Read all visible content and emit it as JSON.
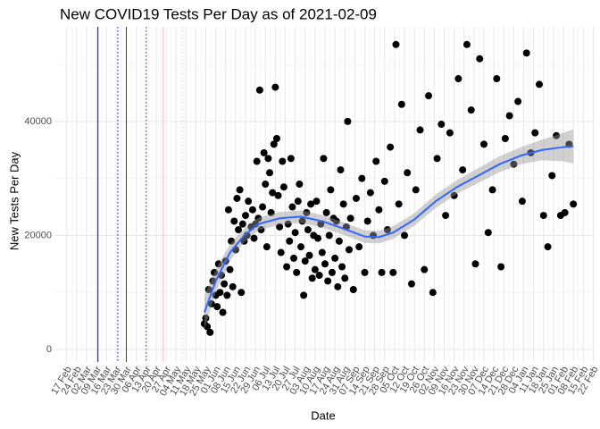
{
  "chart_data": {
    "type": "scatter",
    "title": "New COVID19 Tests Per Day as of 2021-02-09",
    "x_label": "Date",
    "y_label": "New Tests Per Day",
    "xlim": [
      -8,
      372
    ],
    "ylim": [
      -2200,
      56600
    ],
    "yticks": [
      0,
      20000,
      40000
    ],
    "xticks": [
      {
        "value": 0,
        "label": "17 Feb"
      },
      {
        "value": 7,
        "label": "24 Feb"
      },
      {
        "value": 14,
        "label": "02 Mar"
      },
      {
        "value": 21,
        "label": "09 Mar"
      },
      {
        "value": 28,
        "label": "16 Mar"
      },
      {
        "value": 35,
        "label": "23 Mar"
      },
      {
        "value": 42,
        "label": "30 Mar"
      },
      {
        "value": 49,
        "label": "06 Apr"
      },
      {
        "value": 56,
        "label": "13 Apr"
      },
      {
        "value": 63,
        "label": "20 Apr"
      },
      {
        "value": 70,
        "label": "27 Apr"
      },
      {
        "value": 77,
        "label": "04 May"
      },
      {
        "value": 84,
        "label": "11 May"
      },
      {
        "value": 91,
        "label": "18 May"
      },
      {
        "value": 98,
        "label": "25 May"
      },
      {
        "value": 105,
        "label": "01 Jun"
      },
      {
        "value": 112,
        "label": "08 Jun"
      },
      {
        "value": 119,
        "label": "15 Jun"
      },
      {
        "value": 126,
        "label": "22 Jun"
      },
      {
        "value": 133,
        "label": "29 Jun"
      },
      {
        "value": 140,
        "label": "06 Jul"
      },
      {
        "value": 147,
        "label": "13 Jul"
      },
      {
        "value": 154,
        "label": "20 Jul"
      },
      {
        "value": 161,
        "label": "27 Jul"
      },
      {
        "value": 168,
        "label": "03 Aug"
      },
      {
        "value": 175,
        "label": "10 Aug"
      },
      {
        "value": 182,
        "label": "17 Aug"
      },
      {
        "value": 189,
        "label": "24 Aug"
      },
      {
        "value": 196,
        "label": "31 Aug"
      },
      {
        "value": 203,
        "label": "07 Sep"
      },
      {
        "value": 210,
        "label": "14 Sep"
      },
      {
        "value": 217,
        "label": "21 Sep"
      },
      {
        "value": 224,
        "label": "28 Sep"
      },
      {
        "value": 231,
        "label": "05 Oct"
      },
      {
        "value": 238,
        "label": "12 Oct"
      },
      {
        "value": 245,
        "label": "19 Oct"
      },
      {
        "value": 252,
        "label": "26 Oct"
      },
      {
        "value": 259,
        "label": "02 Nov"
      },
      {
        "value": 266,
        "label": "09 Nov"
      },
      {
        "value": 273,
        "label": "16 Nov"
      },
      {
        "value": 280,
        "label": "23 Nov"
      },
      {
        "value": 287,
        "label": "30 Nov"
      },
      {
        "value": 294,
        "label": "07 Dec"
      },
      {
        "value": 301,
        "label": "14 Dec"
      },
      {
        "value": 308,
        "label": "21 Dec"
      },
      {
        "value": 315,
        "label": "28 Dec"
      },
      {
        "value": 322,
        "label": "04 Jan"
      },
      {
        "value": 329,
        "label": "11 Jan"
      },
      {
        "value": 336,
        "label": "18 Jan"
      },
      {
        "value": 343,
        "label": "25 Jan"
      },
      {
        "value": 350,
        "label": "01 Feb"
      },
      {
        "value": 357,
        "label": "08 Feb"
      },
      {
        "value": 364,
        "label": "15 Feb"
      },
      {
        "value": 371,
        "label": "22 Feb"
      }
    ],
    "grid": true,
    "color": "#000000",
    "x": [
      97,
      98,
      99,
      100,
      101,
      102,
      103,
      104,
      105,
      106,
      107,
      108,
      109,
      110,
      111,
      112,
      113,
      114,
      115,
      116,
      117,
      118,
      119,
      120,
      121,
      122,
      123,
      124,
      125,
      126,
      127,
      128,
      130,
      131,
      132,
      133,
      134,
      135,
      136,
      137,
      138,
      139,
      140,
      141,
      142,
      143,
      144,
      145,
      146,
      147,
      148,
      149,
      150,
      151,
      152,
      153,
      155,
      156,
      157,
      158,
      159,
      160,
      161,
      162,
      163,
      164,
      165,
      166,
      167,
      168,
      169,
      170,
      171,
      172,
      173,
      174,
      175,
      176,
      177,
      178,
      179,
      180,
      181,
      182,
      183,
      184,
      185,
      186,
      187,
      188,
      189,
      190,
      191,
      192,
      193,
      194,
      195,
      196,
      197,
      198,
      199,
      200,
      202,
      204,
      206,
      208,
      210,
      212,
      214,
      216,
      218,
      220,
      222,
      224,
      226,
      228,
      230,
      232,
      234,
      236,
      238,
      240,
      243,
      246,
      249,
      252,
      255,
      258,
      261,
      264,
      267,
      270,
      273,
      276,
      279,
      282,
      285,
      288,
      291,
      294,
      297,
      300,
      303,
      306,
      309,
      312,
      315,
      318,
      321,
      324,
      327,
      330,
      333,
      336,
      339,
      342,
      345,
      348,
      351,
      354,
      357
    ],
    "values": [
      4500,
      5500,
      4000,
      10500,
      3000,
      8000,
      12000,
      13500,
      9500,
      7500,
      15000,
      10000,
      13000,
      6500,
      11500,
      15500,
      9500,
      24500,
      14000,
      19000,
      11000,
      22500,
      17500,
      26500,
      21000,
      28000,
      10000,
      22000,
      19000,
      23500,
      20000,
      26000,
      21500,
      24500,
      19500,
      22000,
      33000,
      23000,
      45500,
      21000,
      25000,
      34500,
      29000,
      18000,
      33500,
      31000,
      24000,
      27500,
      36000,
      46000,
      37000,
      27000,
      21500,
      17000,
      33000,
      28500,
      14500,
      22000,
      19000,
      33500,
      25000,
      16000,
      20500,
      13500,
      26000,
      29000,
      18000,
      22500,
      9500,
      15500,
      24000,
      21000,
      16500,
      25500,
      12500,
      20000,
      14000,
      26000,
      19500,
      13000,
      22000,
      17000,
      33500,
      15000,
      24000,
      12000,
      20000,
      28000,
      13500,
      23000,
      16000,
      22500,
      11000,
      19000,
      31500,
      14500,
      25500,
      12500,
      21500,
      40000,
      17500,
      23000,
      10500,
      26500,
      18000,
      30000,
      13500,
      22500,
      27500,
      20000,
      33000,
      24500,
      13500,
      29500,
      21000,
      35500,
      13500,
      53500,
      25500,
      43000,
      20000,
      31000,
      11500,
      28000,
      38500,
      14000,
      44500,
      10000,
      33500,
      39500,
      23500,
      38000,
      27000,
      47500,
      31500,
      53500,
      42000,
      15000,
      51000,
      36000,
      20500,
      28000,
      47500,
      14500,
      37000,
      41000,
      32500,
      43500,
      26000,
      52000,
      34500,
      38000,
      46500,
      23500,
      18000,
      30500,
      37500,
      23500,
      24000,
      36000,
      25500
    ],
    "smooth": {
      "color": "#3366ff",
      "band_color": "#999999",
      "x": [
        97,
        105,
        115,
        125,
        135,
        150,
        165,
        180,
        195,
        210,
        220,
        230,
        245,
        260,
        275,
        290,
        305,
        320,
        335,
        350,
        357
      ],
      "y": [
        6500,
        12000,
        17000,
        20000,
        22000,
        23000,
        23300,
        22500,
        21200,
        19800,
        19700,
        20500,
        22800,
        26000,
        28500,
        30500,
        32500,
        34000,
        35000,
        35500,
        35600
      ],
      "lower": [
        3500,
        10000,
        15500,
        18800,
        20900,
        21900,
        22200,
        21400,
        20100,
        18700,
        18600,
        19400,
        21700,
        24800,
        27300,
        29200,
        31100,
        32500,
        33200,
        33000,
        32600
      ],
      "upper": [
        9500,
        14000,
        18500,
        21200,
        23100,
        24100,
        24400,
        23600,
        22300,
        20900,
        20800,
        21600,
        23900,
        27200,
        29700,
        31800,
        33900,
        35500,
        36800,
        38000,
        38600
      ]
    },
    "vlines": [
      {
        "x": 22,
        "color": "#0000cc",
        "style": "solid"
      },
      {
        "x": 36,
        "color": "#0000cc",
        "style": "dotted"
      },
      {
        "x": 42,
        "color": "#cc0000",
        "style": "solid"
      },
      {
        "x": 56,
        "color": "#cc0000",
        "style": "dotted"
      },
      {
        "x": 68,
        "color": "#ffb6c1",
        "style": "solid"
      },
      {
        "x": 82,
        "color": "#ffb6c1",
        "style": "dotted"
      }
    ]
  }
}
